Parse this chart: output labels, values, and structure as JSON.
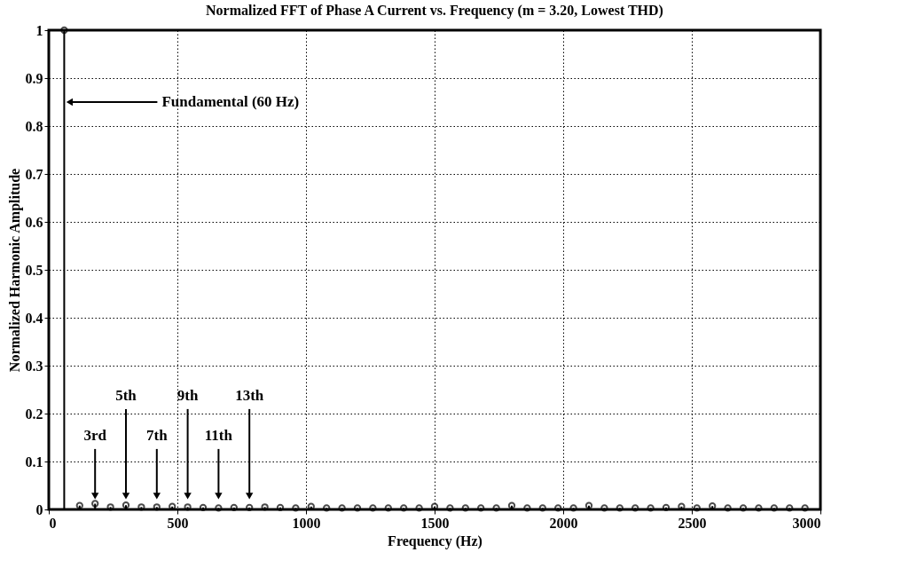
{
  "chart_data": {
    "type": "lollipop",
    "title": "Normalized FFT of Phase A Current vs. Frequency (m = 3.20, Lowest THD)",
    "xlabel": "Frequency (Hz)",
    "ylabel": "Normalized Harmonic Amplitude",
    "x": [
      60,
      120,
      180,
      240,
      300,
      360,
      420,
      480,
      540,
      600,
      660,
      720,
      780,
      840,
      900,
      960,
      1020,
      1080,
      1140,
      1200,
      1260,
      1320,
      1380,
      1440,
      1500,
      1560,
      1620,
      1680,
      1740,
      1800,
      1860,
      1920,
      1980,
      2040,
      2100,
      2160,
      2220,
      2280,
      2340,
      2400,
      2460,
      2520,
      2580,
      2640,
      2700,
      2760,
      2820,
      2880,
      2940
    ],
    "series": [
      {
        "color": "#000000",
        "values": [
          1,
          0.008,
          0.012,
          0.005,
          0.009,
          0.005,
          0.005,
          0.006,
          0.005,
          0.004,
          0.003,
          0.004,
          0.004,
          0.005,
          0.004,
          0.003,
          0.006,
          0.003,
          0.003,
          0.003,
          0.003,
          0.003,
          0.003,
          0.003,
          0.006,
          0.003,
          0.003,
          0.003,
          0.003,
          0.008,
          0.003,
          0.003,
          0.003,
          0.003,
          0.008,
          0.003,
          0.003,
          0.003,
          0.003,
          0.004,
          0.006,
          0.003,
          0.007,
          0.003,
          0.003,
          0.003,
          0.003,
          0.003,
          0.003
        ]
      }
    ],
    "xlim": [
      0,
      3000
    ],
    "xticks": [
      0,
      500,
      1000,
      1500,
      2000,
      2500,
      3000
    ],
    "ylim": [
      0,
      1
    ],
    "yticks": [
      0,
      0.1,
      0.2,
      0.3,
      0.4,
      0.5,
      0.6,
      0.7,
      0.8,
      0.9,
      1
    ],
    "grid": true,
    "marker": "circle",
    "annotations": [
      "Fundamental (60 Hz)",
      {
        "text": "3rd",
        "x": 180,
        "y": 0.015
      },
      {
        "text": "5th",
        "x": 300,
        "y": 0.015
      },
      {
        "text": "7th",
        "x": 420,
        "y": 0.015
      },
      {
        "text": "9th",
        "x": 540,
        "y": 0.015
      },
      {
        "text": "11th",
        "x": 660,
        "y": 0.015
      },
      {
        "text": "13th",
        "x": 780,
        "y": 0.015
      }
    ]
  }
}
